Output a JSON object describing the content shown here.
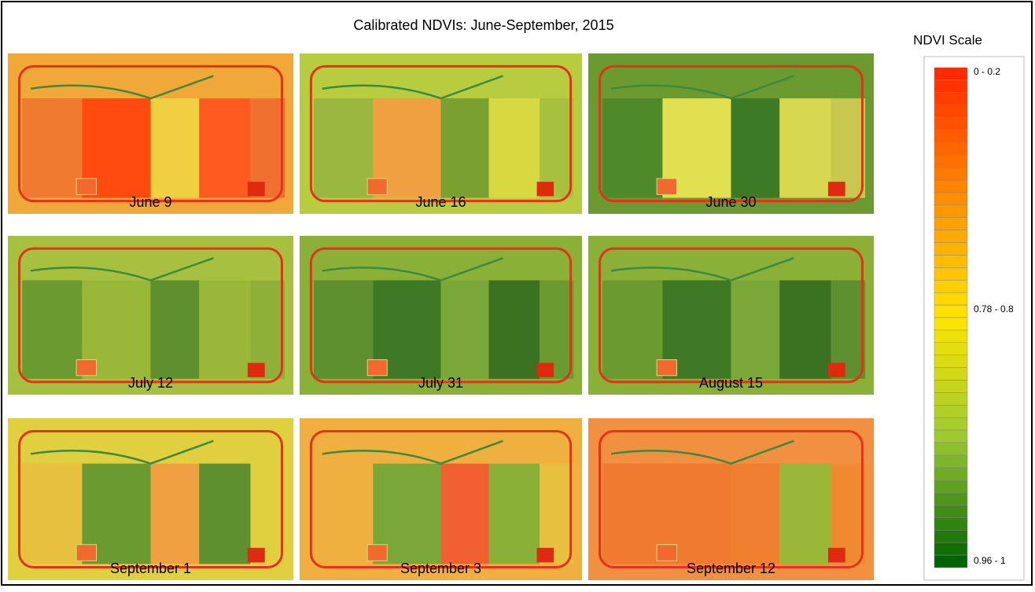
{
  "title": "Calibrated NDVIs: June-September, 2015",
  "panels": [
    {
      "label": "June 9"
    },
    {
      "label": "June 16"
    },
    {
      "label": "June 30"
    },
    {
      "label": "July 12"
    },
    {
      "label": "July 31"
    },
    {
      "label": "August 15"
    },
    {
      "label": "September 1"
    },
    {
      "label": "September 3"
    },
    {
      "label": "September 12"
    }
  ],
  "legend": {
    "title": "NDVI Scale",
    "labels": [
      "0 - 0.2",
      "0.78 - 0.8",
      "0.96 - 1"
    ]
  }
}
